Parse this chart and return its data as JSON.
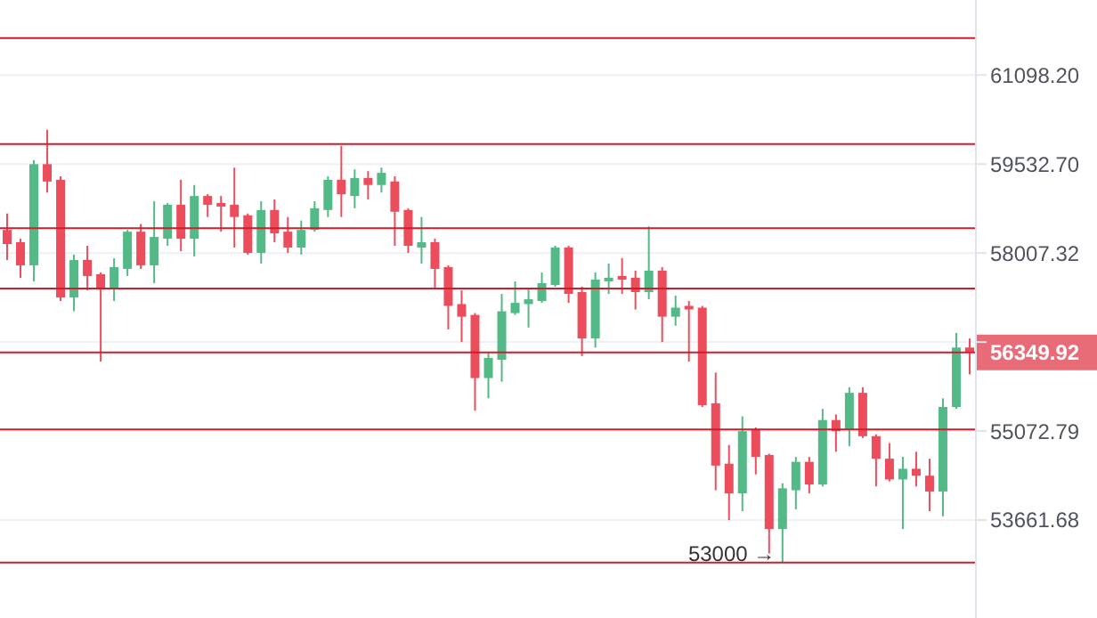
{
  "chart_data": {
    "type": "candlestick",
    "categories": [
      null,
      null,
      null,
      null,
      null,
      null,
      null,
      null,
      null,
      null,
      null,
      null,
      null,
      null,
      null,
      null,
      null,
      null,
      null,
      null,
      null,
      null,
      null,
      null,
      null,
      null,
      null,
      null,
      null,
      null,
      null,
      null,
      null,
      null,
      null,
      null,
      null,
      null,
      null,
      null,
      null,
      null,
      null,
      null,
      null,
      null,
      null,
      null,
      null,
      null,
      null,
      null,
      null,
      null,
      null,
      null,
      null,
      null,
      null,
      null,
      null,
      null,
      null,
      null,
      null,
      null,
      null,
      null,
      null,
      null,
      null,
      null,
      null
    ],
    "ohlc": [
      [
        58400,
        58680,
        57890,
        58160
      ],
      [
        58190,
        58250,
        57590,
        57800
      ],
      [
        57800,
        59600,
        57530,
        59530
      ],
      [
        59530,
        60130,
        59040,
        59230
      ],
      [
        59260,
        59320,
        57200,
        57260
      ],
      [
        57260,
        57980,
        57030,
        57890
      ],
      [
        57890,
        58130,
        57380,
        57620
      ],
      [
        57650,
        57680,
        56200,
        57410
      ],
      [
        57410,
        57920,
        57200,
        57770
      ],
      [
        57740,
        58400,
        57620,
        58370
      ],
      [
        58370,
        58500,
        57740,
        57800
      ],
      [
        57800,
        58890,
        57500,
        58280
      ],
      [
        58250,
        58860,
        58130,
        58830
      ],
      [
        58830,
        59260,
        58040,
        58250
      ],
      [
        58250,
        59170,
        57950,
        58980
      ],
      [
        58980,
        59010,
        58620,
        58830
      ],
      [
        58860,
        58980,
        58370,
        58830
      ],
      [
        58830,
        59470,
        58100,
        58620
      ],
      [
        58650,
        58680,
        57980,
        58010
      ],
      [
        58010,
        58890,
        57830,
        58740
      ],
      [
        58740,
        58920,
        58190,
        58340
      ],
      [
        58370,
        58620,
        58010,
        58100
      ],
      [
        58100,
        58560,
        57980,
        58400
      ],
      [
        58400,
        58890,
        58370,
        58770
      ],
      [
        58740,
        59320,
        58620,
        59260
      ],
      [
        59260,
        59850,
        58620,
        59010
      ],
      [
        58980,
        59440,
        58770,
        59290
      ],
      [
        59290,
        59410,
        58920,
        59170
      ],
      [
        59170,
        59470,
        59040,
        59380
      ],
      [
        59230,
        59320,
        58130,
        58710
      ],
      [
        58740,
        58770,
        58010,
        58130
      ],
      [
        58100,
        58620,
        57830,
        58190
      ],
      [
        58190,
        58250,
        57410,
        57740
      ],
      [
        57770,
        57800,
        56730,
        57120
      ],
      [
        57150,
        57380,
        56520,
        56940
      ],
      [
        56970,
        57000,
        55400,
        55930
      ],
      [
        55930,
        56340,
        55600,
        56260
      ],
      [
        56230,
        57320,
        55870,
        57030
      ],
      [
        57000,
        57530,
        56970,
        57170
      ],
      [
        57150,
        57410,
        56760,
        57230
      ],
      [
        57200,
        57680,
        57170,
        57500
      ],
      [
        57470,
        58130,
        57440,
        58100
      ],
      [
        58100,
        58130,
        57170,
        57320
      ],
      [
        57350,
        57440,
        56290,
        56580
      ],
      [
        56580,
        57680,
        56430,
        57560
      ],
      [
        57530,
        57830,
        57320,
        57590
      ],
      [
        57620,
        57920,
        57320,
        57560
      ],
      [
        57590,
        57710,
        57060,
        57350
      ],
      [
        57350,
        58460,
        57230,
        57710
      ],
      [
        57710,
        57770,
        56520,
        56940
      ],
      [
        56940,
        57290,
        56790,
        57090
      ],
      [
        57120,
        57200,
        56200,
        57080
      ],
      [
        57090,
        57120,
        55460,
        55490
      ],
      [
        55520,
        56020,
        54130,
        54520
      ],
      [
        54550,
        54850,
        53660,
        54080
      ],
      [
        54080,
        55310,
        53800,
        55070
      ],
      [
        55100,
        55130,
        54380,
        54660
      ],
      [
        54690,
        54710,
        53140,
        53520
      ],
      [
        53520,
        54240,
        53000,
        54160
      ],
      [
        54130,
        54660,
        53830,
        54580
      ],
      [
        54580,
        54660,
        54080,
        54220
      ],
      [
        54220,
        55430,
        54190,
        55250
      ],
      [
        55250,
        55340,
        54740,
        55070
      ],
      [
        55100,
        55780,
        54830,
        55690
      ],
      [
        55690,
        55780,
        54960,
        54990
      ],
      [
        54990,
        55020,
        54190,
        54630
      ],
      [
        54630,
        54880,
        54270,
        54300
      ],
      [
        54300,
        54660,
        53520,
        54470
      ],
      [
        54470,
        54740,
        54190,
        54360
      ],
      [
        54360,
        54630,
        53800,
        54110
      ],
      [
        54110,
        55600,
        53720,
        55460
      ],
      [
        55460,
        56670,
        55430,
        56430
      ],
      [
        56430,
        56580,
        55990,
        56349.92
      ]
    ],
    "colors": [
      "#eb4d5c",
      "#eb4d5c",
      "#53b987",
      "#eb4d5c",
      "#eb4d5c",
      "#53b987",
      "#eb4d5c",
      "#eb4d5c",
      "#53b987",
      "#53b987",
      "#eb4d5c",
      "#53b987",
      "#53b987",
      "#eb4d5c",
      "#53b987",
      "#eb4d5c",
      "#eb4d5c",
      "#eb4d5c",
      "#eb4d5c",
      "#53b987",
      "#eb4d5c",
      "#eb4d5c",
      "#53b987",
      "#53b987",
      "#53b987",
      "#eb4d5c",
      "#53b987",
      "#eb4d5c",
      "#53b987",
      "#eb4d5c",
      "#eb4d5c",
      "#53b987",
      "#eb4d5c",
      "#eb4d5c",
      "#eb4d5c",
      "#eb4d5c",
      "#53b987",
      "#53b987",
      "#53b987",
      "#53b987",
      "#53b987",
      "#53b987",
      "#eb4d5c",
      "#eb4d5c",
      "#53b987",
      "#53b987",
      "#eb4d5c",
      "#eb4d5c",
      "#53b987",
      "#eb4d5c",
      "#53b987",
      "#eb4d5c",
      "#eb4d5c",
      "#eb4d5c",
      "#eb4d5c",
      "#53b987",
      "#eb4d5c",
      "#eb4d5c",
      "#53b987",
      "#53b987",
      "#eb4d5c",
      "#53b987",
      "#eb4d5c",
      "#53b987",
      "#eb4d5c",
      "#eb4d5c",
      "#eb4d5c",
      "#53b987",
      "#eb4d5c",
      "#eb4d5c",
      "#53b987",
      "#53b987",
      "#eb4d5c"
    ],
    "log": true,
    "ylim": [
      52150,
      62450
    ],
    "yticks": [
      {
        "value": 53661.68,
        "label": "53661.68"
      },
      {
        "value": 55072.79,
        "label": "55072.79"
      },
      {
        "value": 56521.01,
        "label": null
      },
      {
        "value": 58007.32,
        "label": "58007.32"
      },
      {
        "value": 59532.7,
        "label": "59532.70"
      },
      {
        "value": 61098.2,
        "label": "61098.20"
      }
    ],
    "tick_labels": "y",
    "grid": "y",
    "ref_lines": [
      {
        "axis": "y",
        "value": 61760,
        "color": "#cc1f2b"
      },
      {
        "axis": "y",
        "value": 59880,
        "color": "#cc1f2b"
      },
      {
        "axis": "y",
        "value": 58430,
        "color": "#cc1f2b"
      },
      {
        "axis": "y",
        "value": 57410,
        "color": "#cc1f2b"
      },
      {
        "axis": "y",
        "value": 56349.92,
        "label": "56349.92",
        "color": "#cc1f2b"
      },
      {
        "axis": "y",
        "value": 55100,
        "color": "#cc1f2b"
      },
      {
        "axis": "y",
        "value": 53000,
        "color": "#cc1f2b"
      }
    ],
    "annotations": [
      "53000 →"
    ]
  }
}
